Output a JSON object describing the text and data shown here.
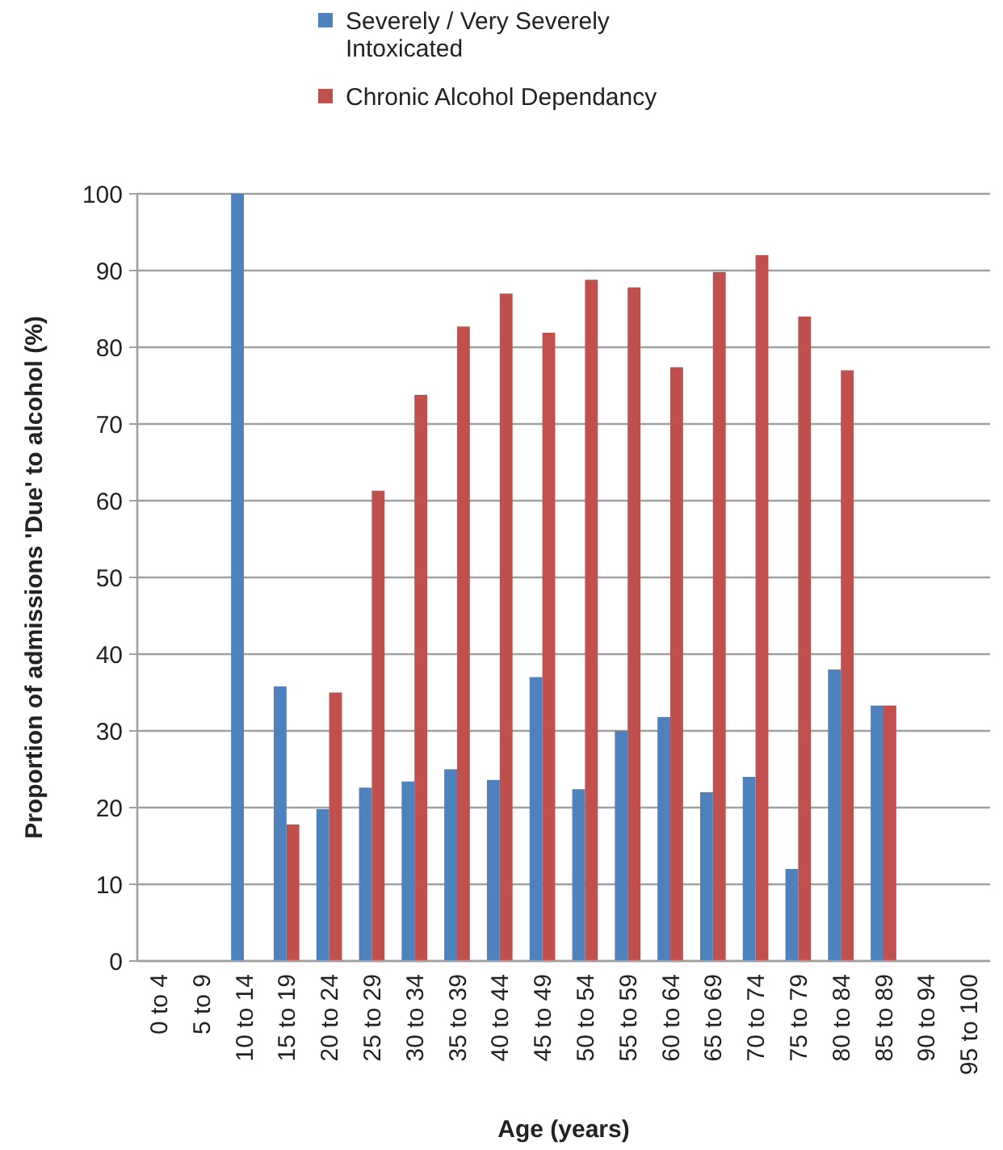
{
  "chart_data": {
    "type": "bar",
    "xlabel": "Age (years)",
    "ylabel": "Proportion of admissions 'Due' to alcohol (%)",
    "categories": [
      "0 to 4",
      "5 to 9",
      "10 to 14",
      "15 to 19",
      "20 to 24",
      "25 to 29",
      "30 to 34",
      "35 to 39",
      "40 to 44",
      "45 to 49",
      "50 to 54",
      "55 to 59",
      "60 to 64",
      "65 to 69",
      "70 to 74",
      "75 to 79",
      "80 to 84",
      "85 to 89",
      "90 to 94",
      "95 to 100"
    ],
    "series": [
      {
        "name": "Severely / Very Severely Intoxicated",
        "color": "#4f81bd",
        "values": [
          null,
          null,
          100,
          35.8,
          19.8,
          22.6,
          23.4,
          25,
          23.6,
          37,
          22.4,
          30,
          31.8,
          22,
          24,
          12,
          38,
          33.3,
          null,
          null
        ]
      },
      {
        "name": "Chronic Alcohol Dependancy",
        "color": "#c0504d",
        "values": [
          null,
          null,
          null,
          17.8,
          35,
          61.3,
          73.8,
          82.7,
          87,
          81.9,
          88.8,
          87.8,
          77.4,
          89.8,
          92,
          84,
          77,
          33.3,
          null,
          null
        ]
      }
    ],
    "ylim": [
      0,
      100
    ],
    "yticks": [
      0,
      10,
      20,
      30,
      40,
      50,
      60,
      70,
      80,
      90,
      100
    ],
    "grid": "y",
    "legend": "top"
  }
}
